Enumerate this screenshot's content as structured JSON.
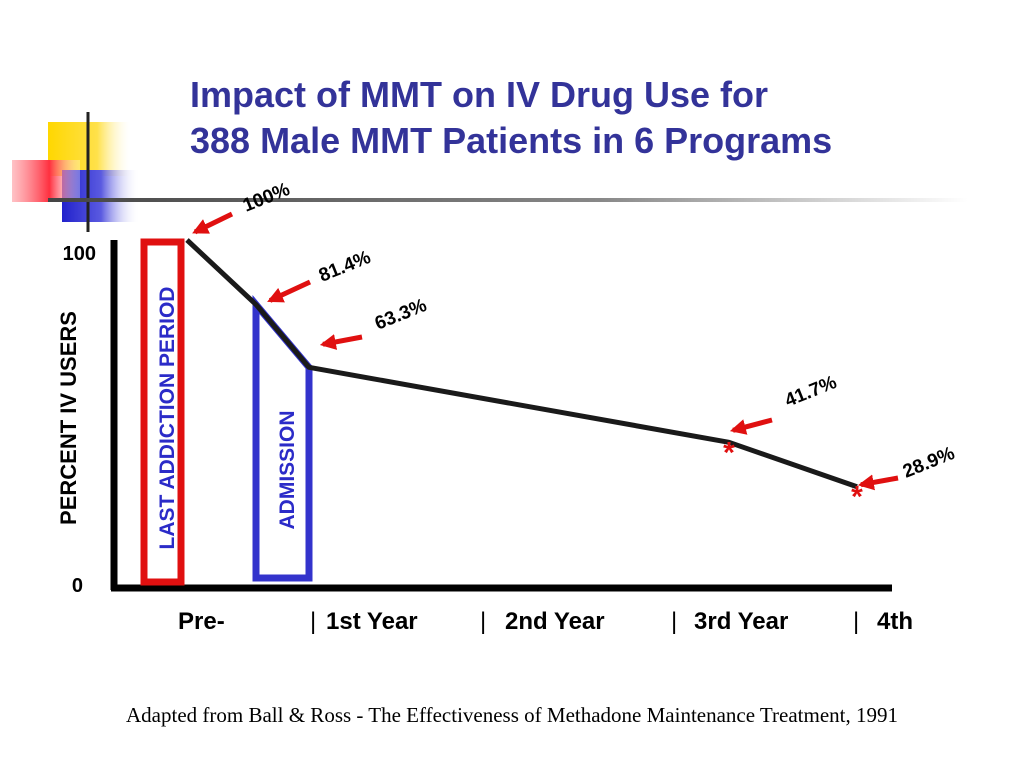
{
  "title": {
    "line1": "Impact of MMT on IV Drug Use for",
    "line2": "388 Male MMT Patients in 6 Programs"
  },
  "caption": "Adapted from Ball & Ross - The Effectiveness of Methadone Maintenance Treatment, 1991",
  "colors": {
    "title": "#333399",
    "line": "#1a1a1a",
    "arrow": "#e01010",
    "addiction_box": "#e01010",
    "admission_box": "#3333cc",
    "period_text": "#2b2bc8"
  },
  "chart_data": {
    "type": "line",
    "ylabel": "PERCENT IV USERS",
    "ylim": [
      0,
      100
    ],
    "y_ticks": [
      "0",
      "100"
    ],
    "x_ticks": [
      "Pre-",
      "1st Year",
      "2nd Year",
      "3rd Year",
      "4th"
    ],
    "x_separator": "|",
    "periods": [
      {
        "name": "last_addiction",
        "label": "LAST ADDICTION PERIOD"
      },
      {
        "name": "admission",
        "label": "ADMISSION"
      }
    ],
    "series": [
      {
        "points": [
          {
            "stage": "end of last addiction period",
            "value": 100,
            "label": "100%"
          },
          {
            "stage": "admission (start)",
            "value": 81.4,
            "label": "81.4%"
          },
          {
            "stage": "admission (end)",
            "value": 63.3,
            "label": "63.3%"
          },
          {
            "stage": "3rd year",
            "value": 41.7,
            "label": "41.7%",
            "marker": "*"
          },
          {
            "stage": "4th year",
            "value": 28.9,
            "label": "28.9%",
            "marker": "*"
          }
        ]
      }
    ],
    "legend": "none",
    "grid": false
  }
}
